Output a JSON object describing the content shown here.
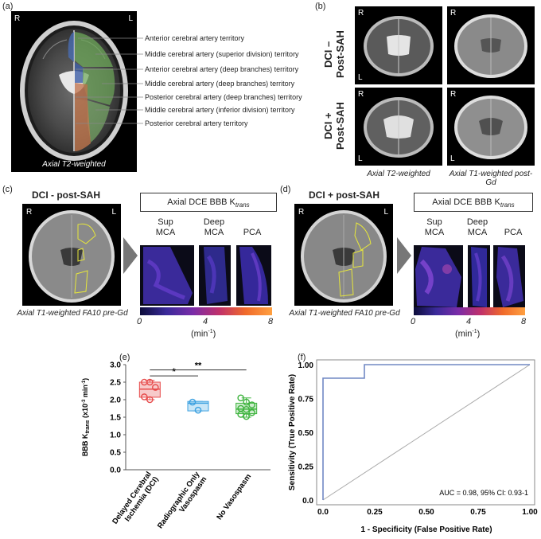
{
  "panels": {
    "a": {
      "label": "(a)",
      "R": "R",
      "L": "L",
      "caption": "Axial T2-weighted",
      "territories": [
        "Anterior cerebral artery territory",
        "Middle cerebral artery (superior division) territory",
        "Anterior cerebral artery (deep branches) territory",
        "Middle cerebral artery (deep branches) territory",
        "Posterior cerebral artery (deep branches) territory",
        "Middle cerebral artery (inferior division) territory",
        "Posterior cerebral artery territory"
      ]
    },
    "b": {
      "label": "(b)",
      "row1": "DCI –\nPost-SAH",
      "row2": "DCI +\nPost-SAH",
      "R": "R",
      "L": "L",
      "caption_left": "Axial T2-weighted",
      "caption_right": "Axial T1-weighted post-Gd"
    },
    "c": {
      "label": "(c)",
      "heading": "DCI - post-SAH",
      "R": "R",
      "L": "L",
      "caption": "Axial T1-weighted FA10 pre-Gd",
      "box_title": "Axial DCE BBB K",
      "box_sub": "trans",
      "regions": [
        "Sup\nMCA",
        "Deep\nMCA",
        "PCA"
      ],
      "cbar_ticks": [
        "0",
        "4",
        "8"
      ],
      "unit": "(min",
      "unit_sup": "-1",
      "unit_end": ")"
    },
    "d": {
      "label": "(d)",
      "heading": "DCI + post-SAH",
      "R": "R",
      "L": "L",
      "caption": "Axial T1-weighted FA10 pre-Gd",
      "box_title": "Axial DCE BBB K",
      "box_sub": "trans",
      "regions": [
        "Sup\nMCA",
        "Deep\nMCA",
        "PCA"
      ],
      "cbar_ticks": [
        "0",
        "4",
        "8"
      ],
      "unit": "(min",
      "unit_sup": "-1",
      "unit_end": ")"
    },
    "e": {
      "label": "(e)"
    },
    "f": {
      "label": "(f)"
    }
  },
  "chart_data": [
    {
      "type": "box",
      "ylabel": "BBB K",
      "ylabel_sub": "trans",
      "ylabel_unit": " (x10",
      "ylabel_sup": "-3",
      "ylabel_end": " min",
      "ylabel_sup2": "-1",
      "ylabel_close": ")",
      "ylim": [
        0,
        3.0
      ],
      "yticks": [
        "0.0",
        "0.5",
        "1.0",
        "1.5",
        "2.0",
        "2.5",
        "3.0"
      ],
      "categories": [
        "Delayed Cerebral Ischemia (DCI)",
        "Radiographic Only Vasospasm",
        "No Vasospasm"
      ],
      "colors": [
        "#e74c4c",
        "#3aa0e0",
        "#3db33d"
      ],
      "fills": [
        "#f7caca",
        "#c8e6f7",
        "#cdeccd"
      ],
      "boxes": [
        {
          "min": 2.0,
          "q1": 2.07,
          "median": 2.3,
          "q3": 2.5,
          "max": 2.55
        },
        {
          "min": 1.68,
          "q1": 1.68,
          "median": 1.9,
          "q3": 1.95,
          "max": 1.95
        },
        {
          "min": 1.5,
          "q1": 1.6,
          "median": 1.73,
          "q3": 1.9,
          "max": 2.05
        }
      ],
      "points": [
        [
          2.5,
          2.5,
          2.35,
          2.08,
          2.0
        ],
        [
          1.93,
          1.7
        ],
        [
          2.05,
          1.93,
          1.85,
          1.75,
          1.72,
          1.63,
          1.58,
          1.52
        ]
      ],
      "sig": [
        {
          "from": 0,
          "to": 1,
          "y": 2.68,
          "label": "*"
        },
        {
          "from": 0,
          "to": 2,
          "y": 2.85,
          "label": "**"
        }
      ]
    },
    {
      "type": "line",
      "xlabel": "1 - Specificity (False Positive Rate)",
      "ylabel": "Sensitivity (True Positive Rate)",
      "xlim": [
        0,
        1
      ],
      "ylim": [
        0,
        1
      ],
      "xticks": [
        "0.0",
        "0.25",
        "0.50",
        "0.75",
        "1.00"
      ],
      "yticks": [
        "0.0",
        "0.25",
        "0.50",
        "0.75",
        "1.00"
      ],
      "series": [
        {
          "x": [
            0,
            0,
            0.2,
            0.2,
            1.0
          ],
          "y": [
            0,
            0.9,
            0.9,
            1.0,
            1.0
          ],
          "color": "#7189c4"
        }
      ],
      "annotation": "AUC = 0.98, 95% CI: 0.93-1"
    }
  ]
}
